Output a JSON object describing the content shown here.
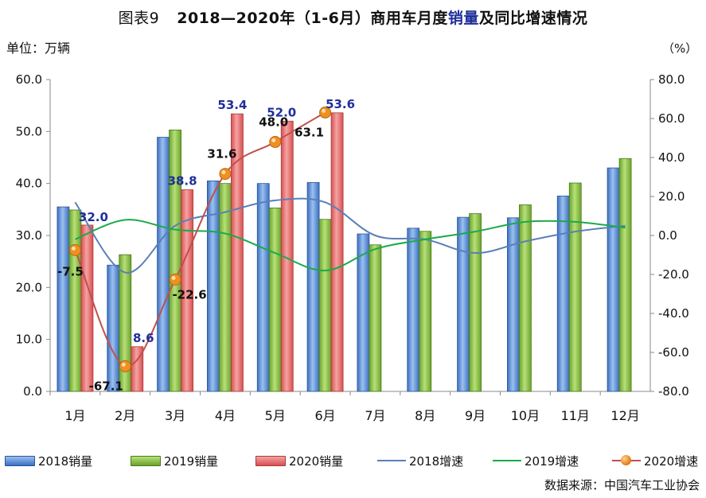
{
  "title": {
    "prefix": "图表9",
    "main_a": "2018—2020年（1-6月）商用车月度",
    "main_b": "销量",
    "main_c": "及同比增速情况"
  },
  "unit_left": "单位：万辆",
  "unit_right": "（%）",
  "source": "数据来源：中国汽车工业协会",
  "colors": {
    "bar2018": "#3a6fc4",
    "bar2019": "#6aa32a",
    "bar2020": "#d94f4f",
    "line2018": "#5a7fb8",
    "line2019": "#1aaa4a",
    "line2020": "#c0504d",
    "marker2020": "#f09020",
    "label_blue": "#1f2f9a"
  },
  "chart_data": {
    "type": "bar",
    "categories": [
      "1月",
      "2月",
      "3月",
      "4月",
      "5月",
      "6月",
      "7月",
      "8月",
      "9月",
      "10月",
      "11月",
      "12月"
    ],
    "y_left": {
      "min": 0,
      "max": 60,
      "step": 10,
      "ticks": [
        "0.0",
        "10.0",
        "20.0",
        "30.0",
        "40.0",
        "50.0",
        "60.0"
      ]
    },
    "y_right": {
      "min": -80,
      "max": 80,
      "step": 20,
      "ticks": [
        "-80.0",
        "-60.0",
        "-40.0",
        "-20.0",
        "0.0",
        "20.0",
        "40.0",
        "60.0",
        "80.0"
      ]
    },
    "series": [
      {
        "name": "2018销量",
        "kind": "bar",
        "axis": "left",
        "values": [
          35.5,
          24.3,
          48.9,
          40.5,
          40.0,
          40.2,
          30.3,
          31.4,
          33.5,
          33.4,
          37.6,
          43.0
        ]
      },
      {
        "name": "2019销量",
        "kind": "bar",
        "axis": "left",
        "values": [
          34.9,
          26.3,
          50.3,
          40.0,
          35.3,
          33.1,
          28.2,
          30.8,
          34.2,
          35.9,
          40.1,
          44.8
        ]
      },
      {
        "name": "2020销量",
        "kind": "bar",
        "axis": "left",
        "values": [
          32.0,
          8.6,
          38.8,
          53.4,
          52.0,
          53.6,
          null,
          null,
          null,
          null,
          null,
          null
        ],
        "labels": [
          "32.0",
          "8.6",
          "38.8",
          "53.4",
          "52.0",
          "53.6"
        ]
      },
      {
        "name": "2018增速",
        "kind": "line",
        "axis": "right",
        "values": [
          17,
          -19,
          5,
          12,
          18,
          17,
          0,
          -2,
          -9,
          -3,
          2,
          5
        ]
      },
      {
        "name": "2019增速",
        "kind": "line",
        "axis": "right",
        "values": [
          -2,
          8,
          3,
          1,
          -9,
          -18,
          -7,
          -2,
          2,
          7,
          7,
          4
        ]
      },
      {
        "name": "2020增速",
        "kind": "line",
        "axis": "right",
        "values": [
          -7.5,
          -67.1,
          -22.6,
          31.6,
          48.0,
          63.1,
          null,
          null,
          null,
          null,
          null,
          null
        ],
        "labels": [
          "-7.5",
          "-67.1",
          "-22.6",
          "31.6",
          "48.0",
          "63.1"
        ]
      }
    ],
    "legend_position": "bottom",
    "grid": false
  }
}
